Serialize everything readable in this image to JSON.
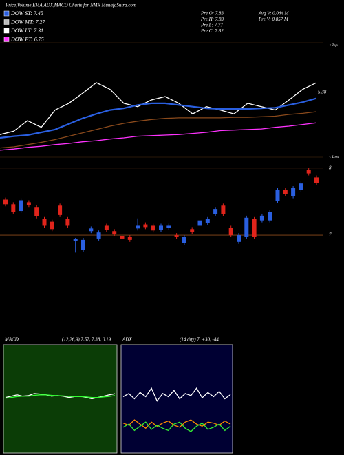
{
  "header": {
    "title": "Price,Volume,EMA,ADX,MACD Charts for NMR MunafaSutra.com",
    "legend": [
      {
        "label": "DOW ST: 7.45",
        "color": "#2a5fe0"
      },
      {
        "label": "DOW MT: 7.27",
        "color": "#bbbbbb"
      },
      {
        "label": "DOW LT: 7.31",
        "color": "#ffffff"
      },
      {
        "label": "DOW PT: 6.75",
        "color": "#ff33ff"
      }
    ],
    "stats_left": [
      "Pre  O: 7.83",
      "Pre  H: 7.83",
      "Pre  L: 7.77",
      "Pre  C: 7.82"
    ],
    "stats_right": [
      "Avg V: 0.044  M",
      "Pre  V: 0.857 M"
    ]
  },
  "chart_data": [
    {
      "type": "line",
      "annotation": "5.38",
      "tops_label": "< Tops",
      "lows_label": "< Lows",
      "ylim": [
        6.2,
        8.3
      ],
      "series": [
        {
          "color": "#ffffff",
          "values": [
            6.63,
            6.69,
            6.88,
            6.76,
            7.07,
            7.19,
            7.37,
            7.56,
            7.44,
            7.19,
            7.13,
            7.25,
            7.31,
            7.19,
            7.0,
            7.13,
            7.07,
            7.0,
            7.19,
            7.13,
            7.07,
            7.25,
            7.44,
            7.56
          ]
        },
        {
          "color": "#2a5fe0",
          "values": [
            6.57,
            6.6,
            6.62,
            6.67,
            6.72,
            6.82,
            6.92,
            7.0,
            7.07,
            7.1,
            7.16,
            7.19,
            7.19,
            7.16,
            7.13,
            7.1,
            7.09,
            7.09,
            7.09,
            7.1,
            7.11,
            7.16,
            7.21,
            7.28
          ]
        },
        {
          "color": "#8b4a1c",
          "values": [
            6.39,
            6.41,
            6.45,
            6.49,
            6.54,
            6.6,
            6.66,
            6.72,
            6.78,
            6.83,
            6.87,
            6.9,
            6.92,
            6.93,
            6.93,
            6.93,
            6.93,
            6.94,
            6.94,
            6.95,
            6.96,
            6.99,
            7.01,
            7.04
          ]
        },
        {
          "color": "#ff33ff",
          "values": [
            6.35,
            6.37,
            6.4,
            6.42,
            6.45,
            6.47,
            6.5,
            6.52,
            6.55,
            6.57,
            6.6,
            6.61,
            6.62,
            6.63,
            6.65,
            6.67,
            6.7,
            6.71,
            6.72,
            6.73,
            6.76,
            6.78,
            6.81,
            6.84
          ]
        }
      ]
    },
    {
      "type": "candlestick",
      "ylim": [
        6.6,
        8.45
      ],
      "yticks": [
        7,
        8
      ],
      "up_color": "#2a5fe0",
      "down_color": "#e0241b",
      "open": [
        7.53,
        7.46,
        7.36,
        7.49,
        7.42,
        7.24,
        7.2,
        7.44,
        7.24,
        6.91,
        6.78,
        7.06,
        6.95,
        7.14,
        7.06,
        6.99,
        6.97,
        7.1,
        7.16,
        7.14,
        7.08,
        7.11,
        7.0,
        6.88,
        7.09,
        7.14,
        7.18,
        7.31,
        7.44,
        7.11,
        6.9,
        6.97,
        7.24,
        7.22,
        7.22,
        7.51,
        7.67,
        7.58,
        7.67,
        7.97,
        7.86
      ],
      "close": [
        7.46,
        7.35,
        7.52,
        7.45,
        7.28,
        7.14,
        7.09,
        7.3,
        7.14,
        6.94,
        6.93,
        7.1,
        7.04,
        7.08,
        7.01,
        6.95,
        6.93,
        7.14,
        7.12,
        7.07,
        7.14,
        7.14,
        6.97,
        6.97,
        7.05,
        7.22,
        7.24,
        7.39,
        7.31,
        7.0,
        7.0,
        7.26,
        6.97,
        7.29,
        7.34,
        7.67,
        7.61,
        7.7,
        7.77,
        7.92,
        7.78
      ],
      "high": [
        7.56,
        7.49,
        7.55,
        7.52,
        7.45,
        7.27,
        7.23,
        7.47,
        7.27,
        6.96,
        6.96,
        7.13,
        7.07,
        7.17,
        7.09,
        7.02,
        7.0,
        7.25,
        7.19,
        7.17,
        7.17,
        7.17,
        7.03,
        7.0,
        7.12,
        7.25,
        7.27,
        7.42,
        7.47,
        7.14,
        7.03,
        7.29,
        7.27,
        7.32,
        7.37,
        7.7,
        7.7,
        7.73,
        7.8,
        8.0,
        7.89
      ],
      "low": [
        7.43,
        7.32,
        7.33,
        7.42,
        7.25,
        7.11,
        7.06,
        7.27,
        7.11,
        6.74,
        6.75,
        7.03,
        6.92,
        7.05,
        6.98,
        6.92,
        6.9,
        7.07,
        7.09,
        7.04,
        7.05,
        7.08,
        6.94,
        6.85,
        7.02,
        7.11,
        7.15,
        7.28,
        7.28,
        6.97,
        6.87,
        6.94,
        6.94,
        7.19,
        7.19,
        7.48,
        7.58,
        7.55,
        7.64,
        7.89,
        7.75
      ]
    },
    {
      "type": "line",
      "title": "MACD",
      "subtitle": "(12,26,9) 7.57, 7.38, 0.19",
      "ylim": [
        -2,
        2
      ],
      "background": "#0b3d06",
      "series": [
        {
          "color": "#ffffff",
          "values": [
            0.05,
            0.1,
            0.15,
            0.1,
            0.12,
            0.2,
            0.18,
            0.15,
            0.1,
            0.12,
            0.1,
            0.05,
            0.08,
            0.1,
            0.05,
            0.0,
            0.05,
            0.1,
            0.15,
            0.19
          ]
        },
        {
          "color": "#33ff33",
          "values": [
            0.02,
            0.05,
            0.08,
            0.1,
            0.1,
            0.13,
            0.15,
            0.15,
            0.13,
            0.12,
            0.11,
            0.09,
            0.08,
            0.08,
            0.07,
            0.05,
            0.05,
            0.07,
            0.09,
            0.12
          ]
        }
      ]
    },
    {
      "type": "line",
      "title": "ADX",
      "subtitle": "(14  day) 7, +30, -44",
      "ylim": [
        0,
        100
      ],
      "background": "#000033",
      "series": [
        {
          "color": "#ffffff",
          "values": [
            52,
            55,
            50,
            56,
            52,
            60,
            48,
            55,
            52,
            58,
            50,
            55,
            53,
            60,
            51,
            56,
            52,
            57,
            50,
            54
          ]
        },
        {
          "color": "#ff8c00",
          "values": [
            27,
            25,
            30,
            26,
            22,
            28,
            24,
            27,
            29,
            25,
            23,
            28,
            30,
            26,
            24,
            28,
            27,
            25,
            29,
            26
          ]
        },
        {
          "color": "#33ee33",
          "values": [
            23,
            26,
            20,
            24,
            28,
            21,
            25,
            22,
            20,
            26,
            28,
            22,
            19,
            24,
            27,
            21,
            23,
            26,
            20,
            24
          ]
        }
      ]
    }
  ]
}
